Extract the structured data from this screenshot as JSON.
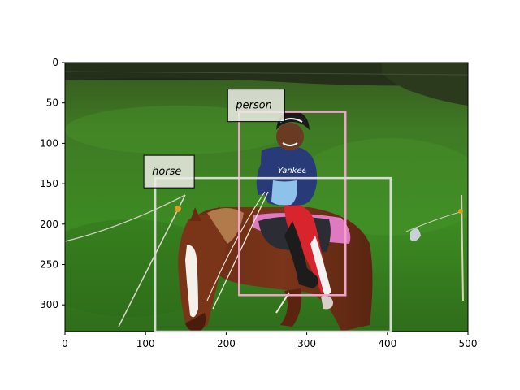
{
  "image": {
    "description_name": "photo-child-riding-horse",
    "width": 500,
    "height": 333
  },
  "axes": {
    "x_ticks": [
      "0",
      "100",
      "200",
      "300",
      "400",
      "500"
    ],
    "y_ticks": [
      "0",
      "50",
      "100",
      "150",
      "200",
      "250",
      "300"
    ]
  },
  "detections": [
    {
      "label": "person",
      "x1": 216,
      "y1": 61,
      "x2": 348,
      "y2": 288,
      "color": "#f2a2c8"
    },
    {
      "label": "horse",
      "x1": 112,
      "y1": 143,
      "x2": 404,
      "y2": 333,
      "color": "#d8d8d8"
    }
  ]
}
